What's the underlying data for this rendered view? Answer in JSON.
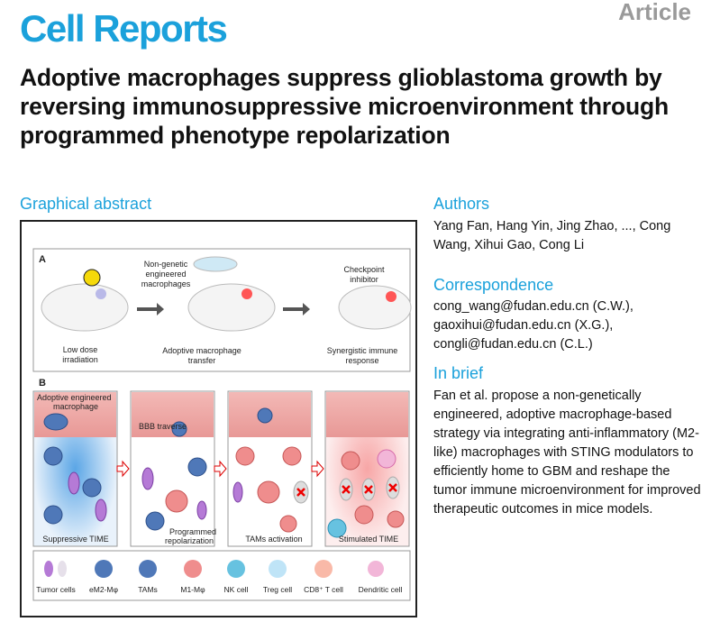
{
  "journal": "Cell Reports",
  "article_type": "Article",
  "title": "Adoptive macrophages suppress glioblastoma growth by reversing immunosuppressive microenvironment through programmed phenotype repolarization",
  "graphical_abstract": {
    "heading": "Graphical abstract",
    "panel_a": {
      "label": "A",
      "steps": [
        "Low dose irradiation",
        "Adoptive macrophage transfer",
        "Synergistic immune response"
      ],
      "annotations": [
        "Non-genetic engineered macrophages",
        "Checkpoint inhibitor"
      ]
    },
    "panel_b": {
      "label": "B",
      "panels": [
        "Suppressive TIME",
        "Programmed repolarization",
        "TAMs activation",
        "Stimulated TIME"
      ],
      "annotations": [
        "Adoptive engineered macrophage",
        "BBB traverse"
      ]
    },
    "legend": [
      "Tumor cells",
      "eM2-Mφ",
      "TAMs",
      "M1-Mφ",
      "NK cell",
      "Treg cell",
      "CD8⁺ T cell",
      "Dendritic cell"
    ]
  },
  "authors": {
    "heading": "Authors",
    "text": "Yang Fan, Hang Yin, Jing Zhao, ..., Cong Wang, Xihui Gao, Cong Li"
  },
  "correspondence": {
    "heading": "Correspondence",
    "lines": [
      "cong_wang@fudan.edu.cn (C.W.),",
      "gaoxihui@fudan.edu.cn (X.G.),",
      "congli@fudan.edu.cn (C.L.)"
    ]
  },
  "in_brief": {
    "heading": "In brief",
    "text": "Fan et al. propose a non-genetically engineered, adoptive macrophage-based strategy via integrating anti-inflammatory (M2-like) macrophages with STING modulators to efficiently home to GBM and reshape the tumor immune microenvironment for improved therapeutic outcomes in mice models."
  },
  "colors": {
    "brand": "#1ba1db",
    "article_label": "#9a9a9a"
  }
}
